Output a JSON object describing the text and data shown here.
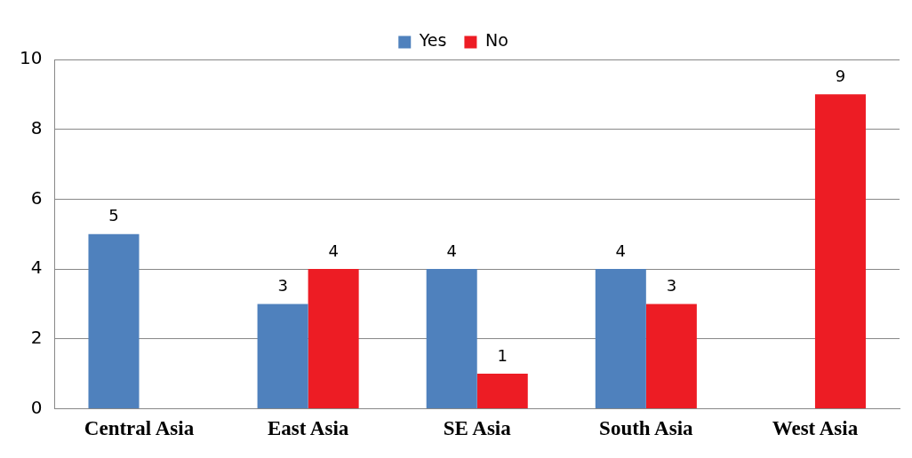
{
  "chart_data": {
    "type": "bar",
    "categories": [
      "Central Asia",
      "East Asia",
      "SE Asia",
      "South Asia",
      "West Asia"
    ],
    "series": [
      {
        "name": "Yes",
        "color": "#4f81bd",
        "values": [
          5,
          3,
          4,
          4,
          null
        ]
      },
      {
        "name": "No",
        "color": "#ed1c24",
        "values": [
          null,
          4,
          1,
          3,
          9
        ]
      }
    ],
    "ylim": [
      0,
      10
    ],
    "yticks": [
      0,
      2,
      4,
      6,
      8,
      10
    ],
    "grid": "y",
    "legend": "top",
    "data_labels": true
  }
}
